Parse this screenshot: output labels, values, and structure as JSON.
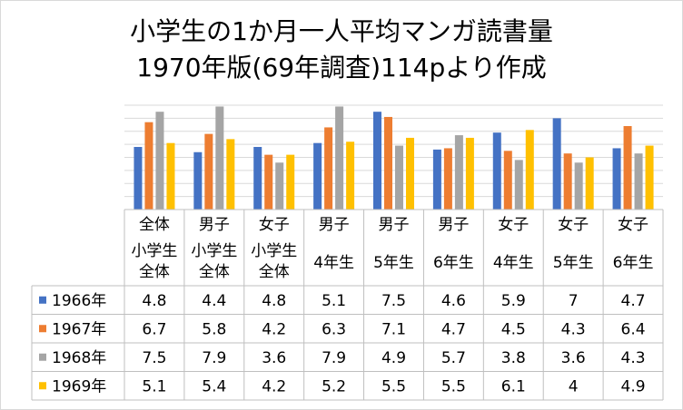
{
  "chart_data": {
    "type": "bar",
    "title": "小学生の1か月一人平均マンガ読書量",
    "subtitle": "1970年版(69年調査)114pより作成",
    "categories": [
      [
        "全体",
        "小学生",
        "全体"
      ],
      [
        "男子",
        "小学生",
        "全体"
      ],
      [
        "女子",
        "小学生",
        "全体"
      ],
      [
        "男子",
        "",
        "4年生"
      ],
      [
        "男子",
        "",
        "5年生"
      ],
      [
        "男子",
        "",
        "6年生"
      ],
      [
        "女子",
        "",
        "4年生"
      ],
      [
        "女子",
        "",
        "5年生"
      ],
      [
        "女子",
        "",
        "6年生"
      ]
    ],
    "series": [
      {
        "name": "1966年",
        "color": "#4472c4",
        "values": [
          4.8,
          4.4,
          4.8,
          5.1,
          7.5,
          4.6,
          5.9,
          7,
          4.7
        ]
      },
      {
        "name": "1967年",
        "color": "#ed7d31",
        "values": [
          6.7,
          5.8,
          4.2,
          6.3,
          7.1,
          4.7,
          4.5,
          4.3,
          6.4
        ]
      },
      {
        "name": "1968年",
        "color": "#a5a5a5",
        "values": [
          7.5,
          7.9,
          3.6,
          7.9,
          4.9,
          5.7,
          3.8,
          3.6,
          4.3
        ]
      },
      {
        "name": "1969年",
        "color": "#ffc000",
        "values": [
          5.1,
          5.4,
          4.2,
          5.2,
          5.5,
          5.5,
          6.1,
          4,
          4.9
        ]
      }
    ],
    "ylim": [
      0,
      8
    ],
    "grid": true,
    "legend": "in data table"
  }
}
